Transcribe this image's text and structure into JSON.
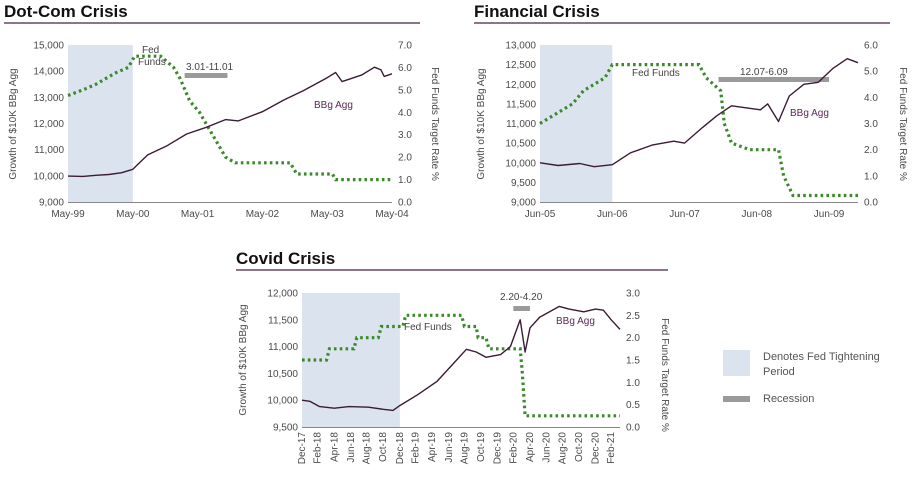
{
  "colors": {
    "tightening": "#dbe3ee",
    "recession": "#9a9a9a",
    "fedfunds": "#3a8a2a",
    "bbg": "#3b1c36",
    "title_rule": "#4a2246"
  },
  "legend": {
    "tightening_label_1": "Denotes Fed Tightening",
    "tightening_label_2": "Period",
    "recession_label": "Recession"
  },
  "chart_data": [
    {
      "type": "line",
      "title": "Dot-Com Crisis",
      "ylabel": "Growth of $10K BBg Agg",
      "y2label": "Fed Funds Target Rate %",
      "x_range": [
        1999.37,
        2004.37
      ],
      "x_ticks": [
        {
          "v": 1999.37,
          "label": "May-99"
        },
        {
          "v": 2000.37,
          "label": "May-00"
        },
        {
          "v": 2001.37,
          "label": "May-01"
        },
        {
          "v": 2002.37,
          "label": "May-02"
        },
        {
          "v": 2003.37,
          "label": "May-03"
        },
        {
          "v": 2004.37,
          "label": "May-04"
        }
      ],
      "ylim": [
        9000,
        15000
      ],
      "y_ticks": [
        {
          "v": 9000,
          "label": "9,000"
        },
        {
          "v": 10000,
          "label": "10,000"
        },
        {
          "v": 11000,
          "label": "11,000"
        },
        {
          "v": 12000,
          "label": "12,000"
        },
        {
          "v": 13000,
          "label": "13,000"
        },
        {
          "v": 14000,
          "label": "14,000"
        },
        {
          "v": 15000,
          "label": "15,000"
        }
      ],
      "y2lim": [
        0,
        7
      ],
      "y2_ticks": [
        {
          "v": 0,
          "label": "0.0"
        },
        {
          "v": 1,
          "label": "1.0"
        },
        {
          "v": 2,
          "label": "2.0"
        },
        {
          "v": 3,
          "label": "3.0"
        },
        {
          "v": 4,
          "label": "4.0"
        },
        {
          "v": 5,
          "label": "5.0"
        },
        {
          "v": 6,
          "label": "6.0"
        },
        {
          "v": 7,
          "label": "7.0"
        }
      ],
      "tightening": [
        1999.37,
        2000.37
      ],
      "recession": {
        "range": [
          2001.17,
          2001.83
        ],
        "label": "3.01-11.01"
      },
      "fed_funds_label_1": "Fed",
      "fed_funds_label_2": "Funds",
      "bbg_label": "BBg Agg",
      "bbg_agg": [
        [
          1999.37,
          9990
        ],
        [
          1999.6,
          9980
        ],
        [
          1999.8,
          10020
        ],
        [
          2000.0,
          10050
        ],
        [
          2000.2,
          10120
        ],
        [
          2000.37,
          10250
        ],
        [
          2000.6,
          10800
        ],
        [
          2000.9,
          11150
        ],
        [
          2001.2,
          11600
        ],
        [
          2001.5,
          11850
        ],
        [
          2001.8,
          12150
        ],
        [
          2002.0,
          12100
        ],
        [
          2002.37,
          12450
        ],
        [
          2002.7,
          12900
        ],
        [
          2003.0,
          13250
        ],
        [
          2003.37,
          13750
        ],
        [
          2003.5,
          13950
        ],
        [
          2003.6,
          13600
        ],
        [
          2003.9,
          13850
        ],
        [
          2004.1,
          14150
        ],
        [
          2004.2,
          14050
        ],
        [
          2004.25,
          13800
        ],
        [
          2004.37,
          13900
        ]
      ],
      "fed_funds": [
        [
          1999.37,
          4.75
        ],
        [
          1999.6,
          5.0
        ],
        [
          1999.8,
          5.25
        ],
        [
          2000.1,
          5.75
        ],
        [
          2000.3,
          6.0
        ],
        [
          2000.4,
          6.5
        ],
        [
          2000.8,
          6.5
        ],
        [
          2001.0,
          6.0
        ],
        [
          2001.1,
          5.5
        ],
        [
          2001.25,
          4.5
        ],
        [
          2001.4,
          4.0
        ],
        [
          2001.5,
          3.5
        ],
        [
          2001.6,
          3.0
        ],
        [
          2001.7,
          2.5
        ],
        [
          2001.8,
          2.0
        ],
        [
          2001.95,
          1.75
        ],
        [
          2002.8,
          1.75
        ],
        [
          2002.9,
          1.25
        ],
        [
          2003.45,
          1.25
        ],
        [
          2003.5,
          1.0
        ],
        [
          2004.37,
          1.0
        ]
      ]
    },
    {
      "type": "line",
      "title": "Financial Crisis",
      "ylabel": "Growth of $10K BBg Agg",
      "y2label": "Fed Funds Target Rate %",
      "x_range": [
        2005.45,
        2009.85
      ],
      "x_ticks": [
        {
          "v": 2005.45,
          "label": "Jun-05"
        },
        {
          "v": 2006.45,
          "label": "Jun-06"
        },
        {
          "v": 2007.45,
          "label": "Jun-07"
        },
        {
          "v": 2008.45,
          "label": "Jun-08"
        },
        {
          "v": 2009.45,
          "label": "Jun-09"
        }
      ],
      "ylim": [
        9000,
        13000
      ],
      "y_ticks": [
        {
          "v": 9000,
          "label": "9,000"
        },
        {
          "v": 9500,
          "label": "9,500"
        },
        {
          "v": 10000,
          "label": "10,000"
        },
        {
          "v": 10500,
          "label": "10,500"
        },
        {
          "v": 11000,
          "label": "11,000"
        },
        {
          "v": 11500,
          "label": "11,500"
        },
        {
          "v": 12000,
          "label": "12,000"
        },
        {
          "v": 12500,
          "label": "12,500"
        },
        {
          "v": 13000,
          "label": "13,000"
        }
      ],
      "y2lim": [
        0,
        6
      ],
      "y2_ticks": [
        {
          "v": 0,
          "label": "0.0"
        },
        {
          "v": 1,
          "label": "1.0"
        },
        {
          "v": 2,
          "label": "2.0"
        },
        {
          "v": 3,
          "label": "3.0"
        },
        {
          "v": 4,
          "label": "4.0"
        },
        {
          "v": 5,
          "label": "5.0"
        },
        {
          "v": 6,
          "label": "6.0"
        }
      ],
      "tightening": [
        2005.45,
        2006.45
      ],
      "recession": {
        "range": [
          2007.92,
          2009.45
        ],
        "label": "12.07-6.09"
      },
      "fed_funds_label": "Fed Funds",
      "bbg_label": "BBg Agg",
      "bbg_agg": [
        [
          2005.45,
          10000
        ],
        [
          2005.7,
          9930
        ],
        [
          2006.0,
          9980
        ],
        [
          2006.2,
          9900
        ],
        [
          2006.45,
          9950
        ],
        [
          2006.7,
          10250
        ],
        [
          2007.0,
          10450
        ],
        [
          2007.3,
          10550
        ],
        [
          2007.45,
          10500
        ],
        [
          2007.7,
          10900
        ],
        [
          2007.9,
          11200
        ],
        [
          2008.1,
          11450
        ],
        [
          2008.3,
          11400
        ],
        [
          2008.5,
          11350
        ],
        [
          2008.6,
          11500
        ],
        [
          2008.75,
          11050
        ],
        [
          2008.9,
          11700
        ],
        [
          2009.1,
          12000
        ],
        [
          2009.3,
          12050
        ],
        [
          2009.5,
          12400
        ],
        [
          2009.7,
          12650
        ],
        [
          2009.85,
          12550
        ]
      ],
      "fed_funds": [
        [
          2005.45,
          3.0
        ],
        [
          2005.6,
          3.25
        ],
        [
          2005.75,
          3.5
        ],
        [
          2005.9,
          3.75
        ],
        [
          2006.05,
          4.25
        ],
        [
          2006.2,
          4.5
        ],
        [
          2006.35,
          4.75
        ],
        [
          2006.45,
          5.25
        ],
        [
          2007.65,
          5.25
        ],
        [
          2007.75,
          4.75
        ],
        [
          2007.85,
          4.5
        ],
        [
          2007.95,
          4.25
        ],
        [
          2008.0,
          3.0
        ],
        [
          2008.1,
          2.25
        ],
        [
          2008.35,
          2.0
        ],
        [
          2008.75,
          2.0
        ],
        [
          2008.82,
          1.0
        ],
        [
          2008.95,
          0.25
        ],
        [
          2009.85,
          0.25
        ]
      ]
    },
    {
      "type": "line",
      "title": "Covid Crisis",
      "ylabel": "Growth of $10K BBg Agg",
      "y2label": "Fed Funds Target Rate %",
      "x_range": [
        2017.92,
        2021.17
      ],
      "x_ticks": [
        {
          "v": 2017.92,
          "label": "Dec-17"
        },
        {
          "v": 2018.08,
          "label": "Feb-18"
        },
        {
          "v": 2018.25,
          "label": "Apr-18"
        },
        {
          "v": 2018.42,
          "label": "Jun-18"
        },
        {
          "v": 2018.58,
          "label": "Aug-18"
        },
        {
          "v": 2018.75,
          "label": "Oct-18"
        },
        {
          "v": 2018.92,
          "label": "Dec-18"
        },
        {
          "v": 2019.08,
          "label": "Feb-19"
        },
        {
          "v": 2019.25,
          "label": "Apr-19"
        },
        {
          "v": 2019.42,
          "label": "Jun-19"
        },
        {
          "v": 2019.58,
          "label": "Aug-19"
        },
        {
          "v": 2019.75,
          "label": "Oct-19"
        },
        {
          "v": 2019.92,
          "label": "Dec-19"
        },
        {
          "v": 2020.08,
          "label": "Feb-20"
        },
        {
          "v": 2020.25,
          "label": "Apr-20"
        },
        {
          "v": 2020.42,
          "label": "Jun-20"
        },
        {
          "v": 2020.58,
          "label": "Aug-20"
        },
        {
          "v": 2020.75,
          "label": "Oct-20"
        },
        {
          "v": 2020.92,
          "label": "Dec-20"
        },
        {
          "v": 2021.08,
          "label": "Feb-21"
        }
      ],
      "ylim": [
        9500,
        12000
      ],
      "y_ticks": [
        {
          "v": 9500,
          "label": "9,500"
        },
        {
          "v": 10000,
          "label": "10,000"
        },
        {
          "v": 10500,
          "label": "10,500"
        },
        {
          "v": 11000,
          "label": "11,000"
        },
        {
          "v": 11500,
          "label": "11,500"
        },
        {
          "v": 12000,
          "label": "12,000"
        }
      ],
      "y2lim": [
        0,
        3
      ],
      "y2_ticks": [
        {
          "v": 0,
          "label": "0.0"
        },
        {
          "v": 0.5,
          "label": "0.5"
        },
        {
          "v": 1,
          "label": "1.0"
        },
        {
          "v": 1.5,
          "label": "1.5"
        },
        {
          "v": 2,
          "label": "2.0"
        },
        {
          "v": 2.5,
          "label": "2.5"
        },
        {
          "v": 3,
          "label": "3.0"
        }
      ],
      "tightening": [
        2017.92,
        2018.92
      ],
      "recession": {
        "range": [
          2020.08,
          2020.25
        ],
        "label": "2.20-4.20"
      },
      "fed_funds_label": "Fed Funds",
      "bbg_label": "BBg Agg",
      "bbg_agg": [
        [
          2017.92,
          10000
        ],
        [
          2018.0,
          9980
        ],
        [
          2018.1,
          9880
        ],
        [
          2018.25,
          9850
        ],
        [
          2018.4,
          9880
        ],
        [
          2018.6,
          9870
        ],
        [
          2018.75,
          9830
        ],
        [
          2018.85,
          9810
        ],
        [
          2018.92,
          9900
        ],
        [
          2019.1,
          10100
        ],
        [
          2019.3,
          10350
        ],
        [
          2019.45,
          10650
        ],
        [
          2019.6,
          10950
        ],
        [
          2019.7,
          10900
        ],
        [
          2019.8,
          10800
        ],
        [
          2019.95,
          10850
        ],
        [
          2020.05,
          11000
        ],
        [
          2020.15,
          11500
        ],
        [
          2020.2,
          10900
        ],
        [
          2020.25,
          11350
        ],
        [
          2020.35,
          11550
        ],
        [
          2020.45,
          11650
        ],
        [
          2020.55,
          11750
        ],
        [
          2020.65,
          11700
        ],
        [
          2020.8,
          11650
        ],
        [
          2020.92,
          11700
        ],
        [
          2021.0,
          11680
        ],
        [
          2021.08,
          11500
        ],
        [
          2021.17,
          11320
        ]
      ],
      "fed_funds": [
        [
          2017.92,
          1.5
        ],
        [
          2018.17,
          1.5
        ],
        [
          2018.2,
          1.75
        ],
        [
          2018.45,
          1.75
        ],
        [
          2018.48,
          2.0
        ],
        [
          2018.7,
          2.0
        ],
        [
          2018.73,
          2.25
        ],
        [
          2018.95,
          2.25
        ],
        [
          2018.98,
          2.5
        ],
        [
          2019.55,
          2.5
        ],
        [
          2019.58,
          2.25
        ],
        [
          2019.7,
          2.25
        ],
        [
          2019.72,
          2.0
        ],
        [
          2019.8,
          2.0
        ],
        [
          2019.83,
          1.75
        ],
        [
          2020.15,
          1.75
        ],
        [
          2020.17,
          1.25
        ],
        [
          2020.2,
          0.25
        ],
        [
          2021.17,
          0.25
        ]
      ]
    }
  ]
}
